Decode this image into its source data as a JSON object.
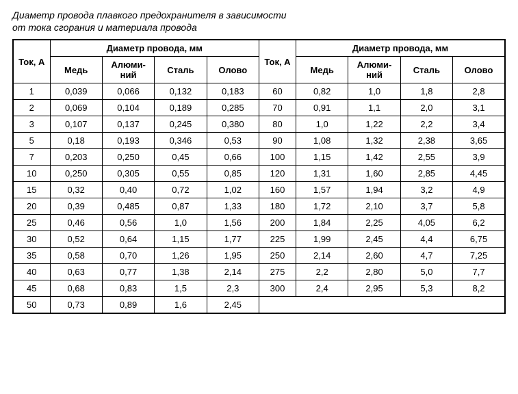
{
  "title_line1": "Диаметр провода плавкого предохранителя в зависимости",
  "title_line2": "от тока сгорания и материала провода",
  "headers": {
    "current": "Ток, А",
    "diameter": "Диаметр провода, мм",
    "copper": "Медь",
    "aluminum": "Алюми-\nний",
    "steel": "Сталь",
    "tin": "Олово"
  },
  "table": {
    "type": "table",
    "columns": [
      "Ток, А",
      "Медь",
      "Алюминий",
      "Сталь",
      "Олово",
      "Ток, А",
      "Медь",
      "Алюминий",
      "Сталь",
      "Олово"
    ],
    "font_size_pt": 10,
    "header_fontweight": "bold",
    "border_color": "#000000",
    "background_color": "#ffffff",
    "text_color": "#000000",
    "cell_align": "center",
    "col_widths_pct": [
      7.5,
      10.6,
      10.6,
      10.6,
      10.6,
      7.5,
      10.6,
      10.6,
      10.6,
      10.6
    ]
  },
  "left_rows": [
    {
      "i": "1",
      "cu": "0,039",
      "al": "0,066",
      "fe": "0,132",
      "sn": "0,183"
    },
    {
      "i": "2",
      "cu": "0,069",
      "al": "0,104",
      "fe": "0,189",
      "sn": "0,285"
    },
    {
      "i": "3",
      "cu": "0,107",
      "al": "0,137",
      "fe": "0,245",
      "sn": "0,380"
    },
    {
      "i": "5",
      "cu": "0,18",
      "al": "0,193",
      "fe": "0,346",
      "sn": "0,53"
    },
    {
      "i": "7",
      "cu": "0,203",
      "al": "0,250",
      "fe": "0,45",
      "sn": "0,66"
    },
    {
      "i": "10",
      "cu": "0,250",
      "al": "0,305",
      "fe": "0,55",
      "sn": "0,85"
    },
    {
      "i": "15",
      "cu": "0,32",
      "al": "0,40",
      "fe": "0,72",
      "sn": "1,02"
    },
    {
      "i": "20",
      "cu": "0,39",
      "al": "0,485",
      "fe": "0,87",
      "sn": "1,33"
    },
    {
      "i": "25",
      "cu": "0,46",
      "al": "0,56",
      "fe": "1,0",
      "sn": "1,56"
    },
    {
      "i": "30",
      "cu": "0,52",
      "al": "0,64",
      "fe": "1,15",
      "sn": "1,77"
    },
    {
      "i": "35",
      "cu": "0,58",
      "al": "0,70",
      "fe": "1,26",
      "sn": "1,95"
    },
    {
      "i": "40",
      "cu": "0,63",
      "al": "0,77",
      "fe": "1,38",
      "sn": "2,14"
    },
    {
      "i": "45",
      "cu": "0,68",
      "al": "0,83",
      "fe": "1,5",
      "sn": "2,3"
    },
    {
      "i": "50",
      "cu": "0,73",
      "al": "0,89",
      "fe": "1,6",
      "sn": "2,45"
    }
  ],
  "right_rows": [
    {
      "i": "60",
      "cu": "0,82",
      "al": "1,0",
      "fe": "1,8",
      "sn": "2,8"
    },
    {
      "i": "70",
      "cu": "0,91",
      "al": "1,1",
      "fe": "2,0",
      "sn": "3,1"
    },
    {
      "i": "80",
      "cu": "1,0",
      "al": "1,22",
      "fe": "2,2",
      "sn": "3,4"
    },
    {
      "i": "90",
      "cu": "1,08",
      "al": "1,32",
      "fe": "2,38",
      "sn": "3,65"
    },
    {
      "i": "100",
      "cu": "1,15",
      "al": "1,42",
      "fe": "2,55",
      "sn": "3,9"
    },
    {
      "i": "120",
      "cu": "1,31",
      "al": "1,60",
      "fe": "2,85",
      "sn": "4,45"
    },
    {
      "i": "160",
      "cu": "1,57",
      "al": "1,94",
      "fe": "3,2",
      "sn": "4,9"
    },
    {
      "i": "180",
      "cu": "1,72",
      "al": "2,10",
      "fe": "3,7",
      "sn": "5,8"
    },
    {
      "i": "200",
      "cu": "1,84",
      "al": "2,25",
      "fe": "4,05",
      "sn": "6,2"
    },
    {
      "i": "225",
      "cu": "1,99",
      "al": "2,45",
      "fe": "4,4",
      "sn": "6,75"
    },
    {
      "i": "250",
      "cu": "2,14",
      "al": "2,60",
      "fe": "4,7",
      "sn": "7,25"
    },
    {
      "i": "275",
      "cu": "2,2",
      "al": "2,80",
      "fe": "5,0",
      "sn": "7,7"
    },
    {
      "i": "300",
      "cu": "2,4",
      "al": "2,95",
      "fe": "5,3",
      "sn": "8,2"
    }
  ]
}
